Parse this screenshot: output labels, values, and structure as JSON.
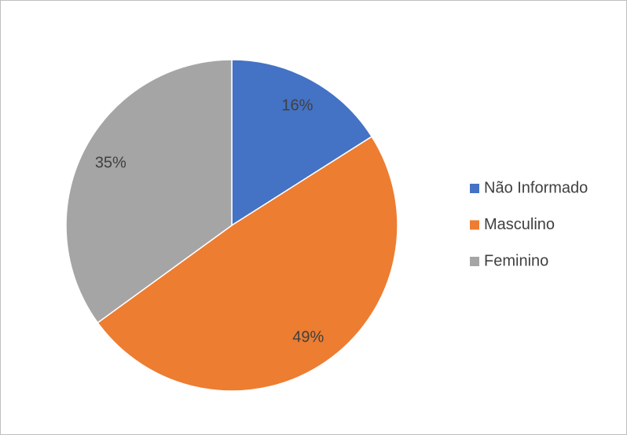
{
  "chart_data": {
    "type": "pie",
    "categories": [
      "Não Informado",
      "Masculino",
      "Feminino"
    ],
    "values": [
      16,
      49,
      35
    ],
    "value_labels": [
      "16%",
      "49%",
      "35%"
    ],
    "colors": [
      "#4472c4",
      "#ed7d31",
      "#a5a5a5"
    ],
    "legend": "right"
  }
}
